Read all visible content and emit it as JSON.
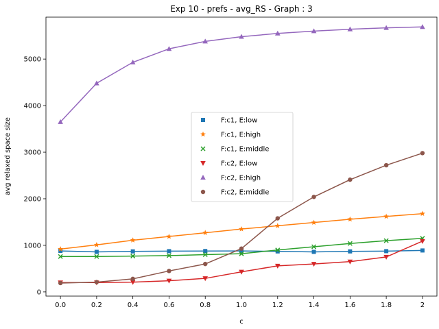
{
  "chart_data": {
    "type": "line",
    "title": "Exp 10 - prefs - avg_RS - Graph : 3",
    "xlabel": "c",
    "ylabel": "avg relaxed space size",
    "x": [
      0.0,
      0.2,
      0.4,
      0.6,
      0.8,
      1.0,
      1.2,
      1.4,
      1.6,
      1.8,
      2.0
    ],
    "x_tick_labels": [
      "0.0",
      "0.2",
      "0.4",
      "0.6",
      "0.8",
      "1.0",
      "1.2",
      "1.4",
      "1.6",
      "1.8",
      "2"
    ],
    "y_ticks": [
      0,
      1000,
      2000,
      3000,
      4000,
      5000
    ],
    "xlim": [
      -0.08,
      2.08
    ],
    "ylim": [
      -90,
      5900
    ],
    "grid": false,
    "legend_position": "center",
    "series": [
      {
        "name": "F:c1, E:low",
        "color": "#1f77b4",
        "marker": "square",
        "values": [
          880,
          860,
          870,
          875,
          878,
          880,
          870,
          860,
          870,
          875,
          890
        ]
      },
      {
        "name": "F:c1, E:high",
        "color": "#ff7f0e",
        "marker": "star",
        "values": [
          920,
          1010,
          1110,
          1190,
          1270,
          1350,
          1420,
          1490,
          1560,
          1620,
          1680
        ]
      },
      {
        "name": "F:c1, E:middle",
        "color": "#2ca02c",
        "marker": "x",
        "values": [
          760,
          760,
          770,
          780,
          800,
          820,
          900,
          970,
          1040,
          1100,
          1150
        ]
      },
      {
        "name": "F:c2, E:low",
        "color": "#d62728",
        "marker": "triangle-down",
        "values": [
          200,
          200,
          210,
          240,
          290,
          430,
          560,
          600,
          650,
          750,
          1090
        ]
      },
      {
        "name": "F:c2, E:high",
        "color": "#9467bd",
        "marker": "triangle-up",
        "values": [
          3650,
          4480,
          4930,
          5220,
          5380,
          5480,
          5550,
          5600,
          5640,
          5670,
          5690
        ]
      },
      {
        "name": "F:c2, E:middle",
        "color": "#8c564b",
        "marker": "circle",
        "values": [
          190,
          210,
          280,
          450,
          600,
          930,
          1580,
          2040,
          2410,
          2720,
          2980
        ]
      }
    ]
  }
}
